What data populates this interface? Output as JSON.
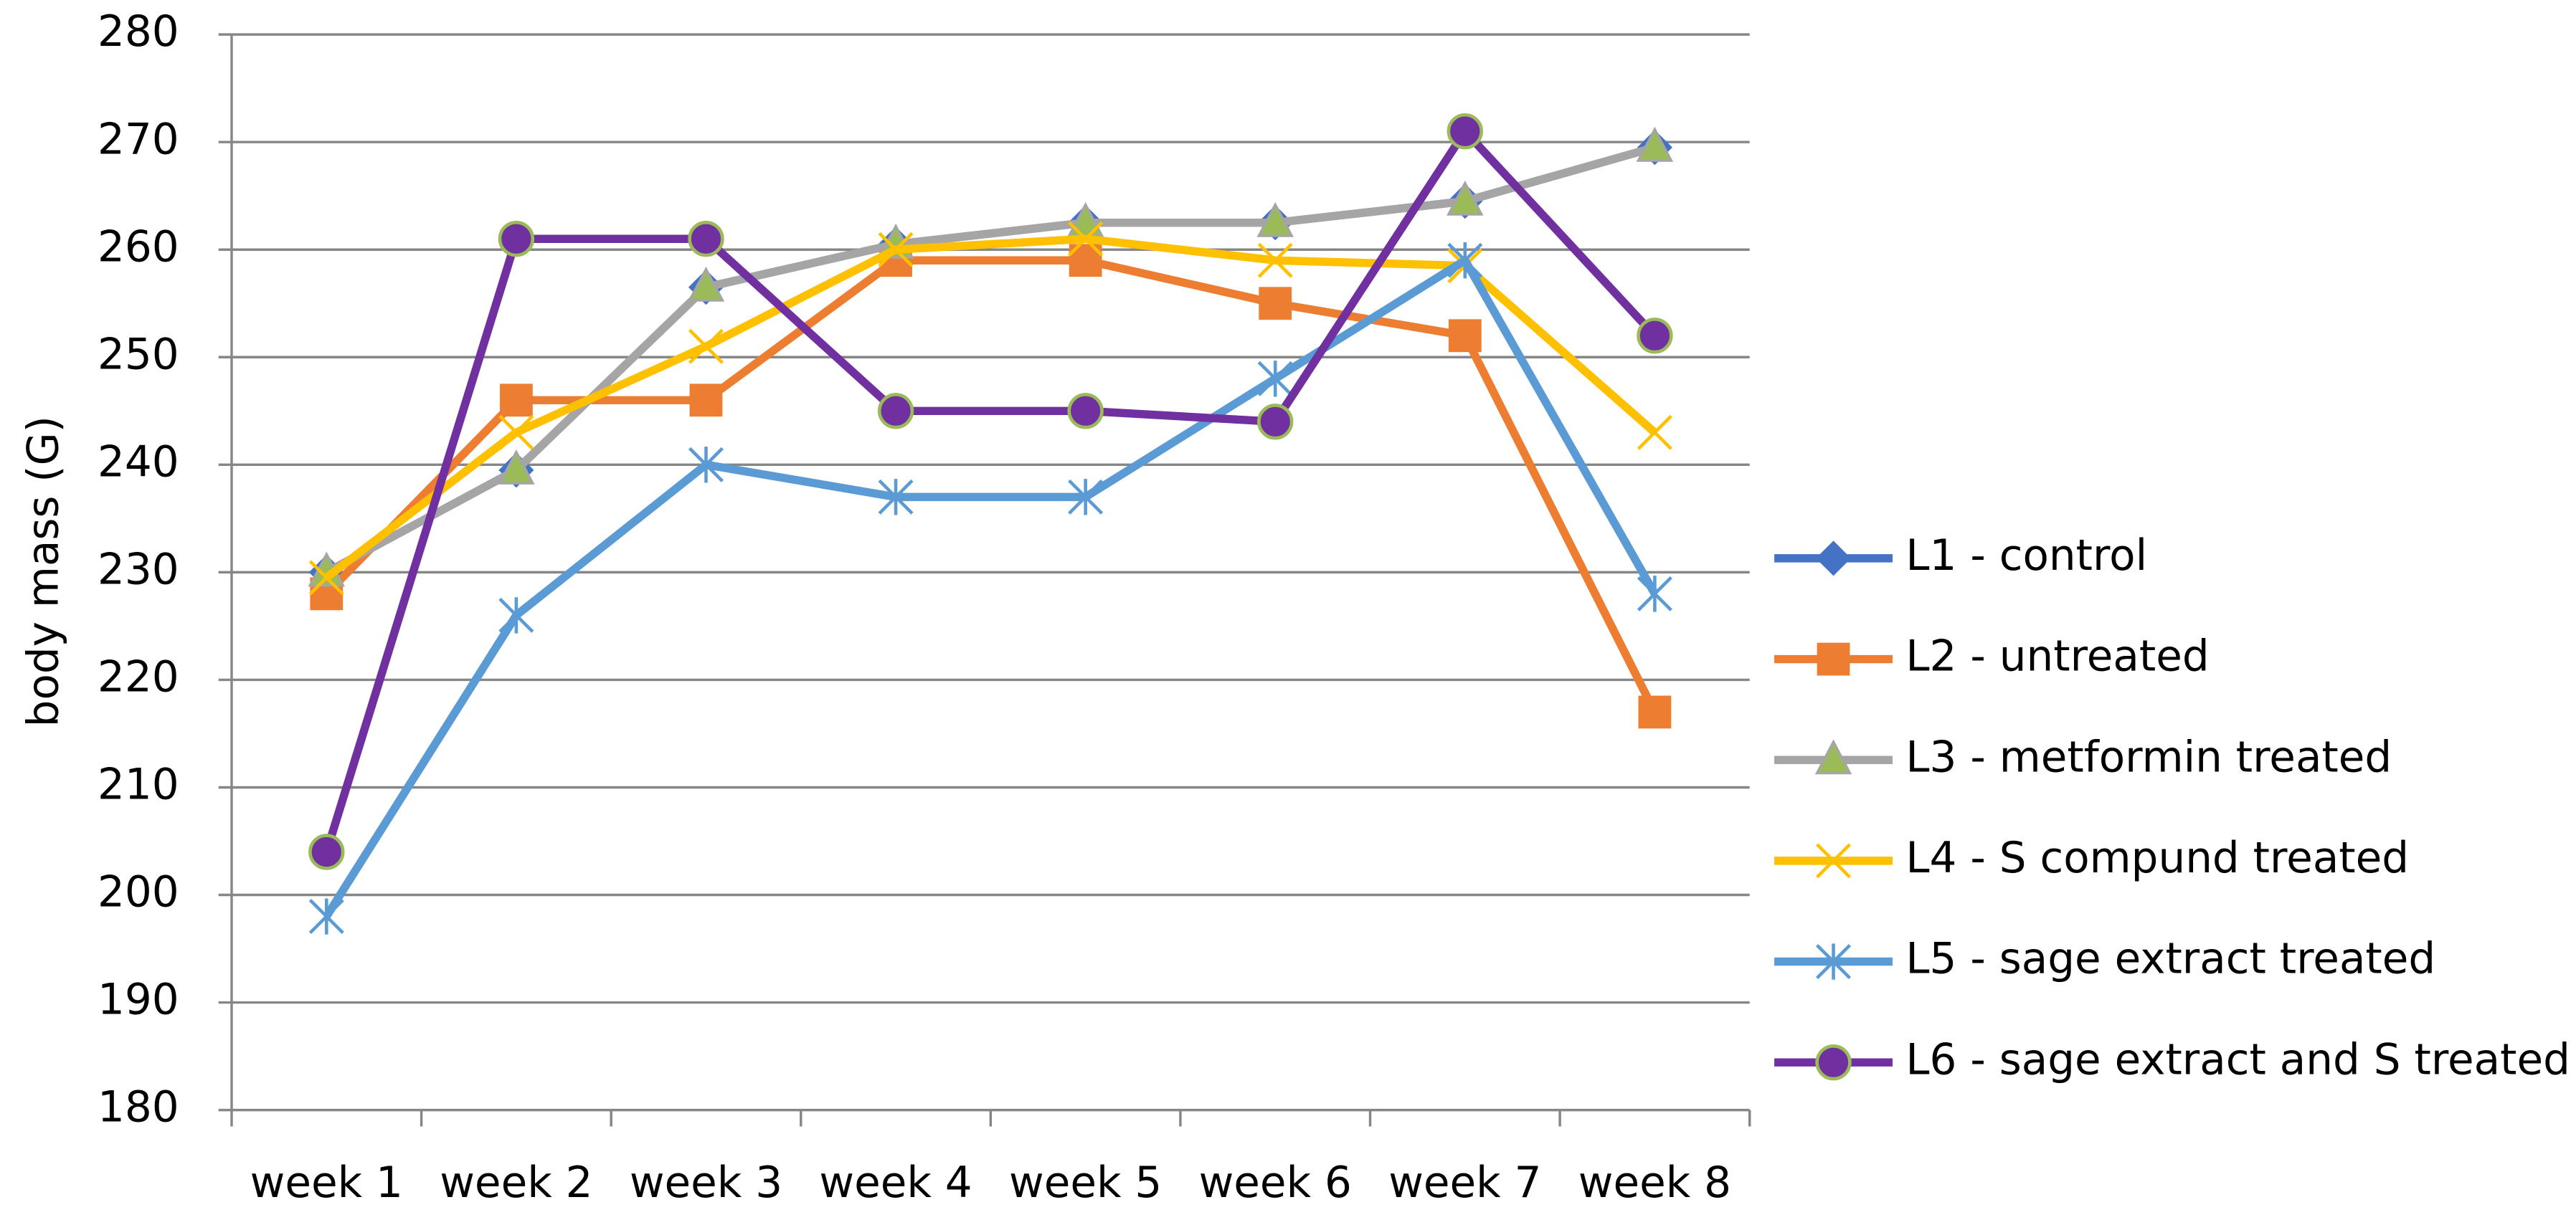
{
  "chart_data": {
    "type": "line",
    "y_label": "body mass (G)",
    "categories": [
      "week 1",
      "week 2",
      "week 3",
      "week 4",
      "week 5",
      "week 6",
      "week 7",
      "week 8"
    ],
    "ylim": [
      180,
      280
    ],
    "yticks": [
      180,
      190,
      200,
      210,
      220,
      230,
      240,
      250,
      260,
      270,
      280
    ],
    "grid": true,
    "legend": "right",
    "series": [
      {
        "name": "L1 - control",
        "color": "#4472c4",
        "marker": "diamond",
        "marker_color": "#4472c4",
        "values": [
          230,
          239.5,
          256.5,
          260.5,
          262.5,
          262.5,
          264.5,
          269.5
        ]
      },
      {
        "name": "L2 - untreated",
        "color": "#ed7d31",
        "marker": "square",
        "marker_color": "#ed7d31",
        "values": [
          228,
          246,
          246,
          259,
          259,
          255,
          252,
          217
        ]
      },
      {
        "name": "L3 - metformin treated",
        "color": "#a5a5a5",
        "marker": "triangle",
        "marker_color": "#9bbb59",
        "values": [
          230,
          239.5,
          256.5,
          260.5,
          262.5,
          262.5,
          264.5,
          269.5
        ]
      },
      {
        "name": "L4 - S compund treated",
        "color": "#ffc000",
        "marker": "x",
        "marker_color": "#ffc000",
        "values": [
          229.5,
          243,
          251,
          260,
          261,
          259,
          258.5,
          243
        ]
      },
      {
        "name": "L5 - sage extract treated",
        "color": "#5b9bd5",
        "marker": "star",
        "marker_color": "#5b9bd5",
        "values": [
          198,
          226,
          240,
          237,
          237,
          248,
          259,
          228
        ]
      },
      {
        "name": "L6 - sage extract and S treated",
        "color": "#7030a0",
        "marker": "circle",
        "marker_color": "#7030a0",
        "values": [
          204,
          261,
          261,
          245,
          245,
          244,
          271,
          252
        ]
      }
    ]
  }
}
